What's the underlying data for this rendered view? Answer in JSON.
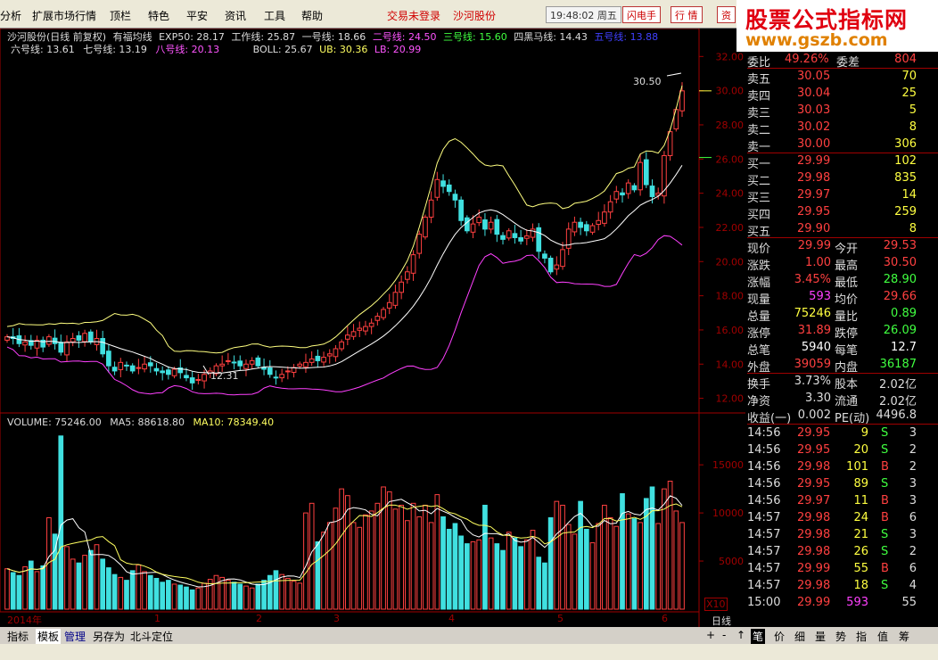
{
  "menu": {
    "items": [
      "分析",
      "扩展市场行情",
      "顶栏",
      "特色",
      "平安",
      "资讯",
      "工具",
      "帮助"
    ],
    "login_status": "交易未登录",
    "stock_link": "沙河股份",
    "clock": "19:48:02 周五",
    "flash_button": "闪电手",
    "quote_button": "行 情",
    "info_button": "资"
  },
  "banner": {
    "line1": "股票公式指标网",
    "line2": "www.gszb.com"
  },
  "header": {
    "title": "沙河股份(日线 前复权)",
    "indicator_name": "有福均线",
    "exp50": "EXP50: 28.17",
    "work": "工作线: 25.87",
    "l1": "一号线: 18.66",
    "l2": "二号线: 24.50",
    "l3": "三号线: 15.60",
    "l4": "四黑马线: 14.43",
    "l5": "五号线: 13.88",
    "l6": "六号线: 13.61",
    "l7": "七号线: 13.19",
    "l8": "八号线: 20.13",
    "boll": "BOLL: 25.67",
    "ub": "UB: 30.36",
    "lb": "LB: 20.99"
  },
  "volume_header": {
    "vol": "VOLUME: 75246.00",
    "ma5": "MA5: 88618.80",
    "ma10": "MA10: 78349.40"
  },
  "annotations": {
    "high": "30.50",
    "low": "12.31"
  },
  "x_labels": [
    "2014年",
    "1",
    "2",
    "3",
    "4",
    "5",
    "6"
  ],
  "x10_label": "X10",
  "period_label": "日线",
  "price_axis": [
    "32.00",
    "30.00",
    "28.00",
    "26.00",
    "24.00",
    "22.00",
    "20.00",
    "18.00",
    "16.00",
    "14.00",
    "12.00"
  ],
  "volume_axis": [
    "15000",
    "10000",
    "5000"
  ],
  "quote": {
    "weibi_label": "委比",
    "weibi_val": "49.26%",
    "weicha_label": "委差",
    "weicha_val": "804",
    "sells": [
      {
        "label": "卖五",
        "price": "30.05",
        "vol": "70"
      },
      {
        "label": "卖四",
        "price": "30.04",
        "vol": "25"
      },
      {
        "label": "卖三",
        "price": "30.03",
        "vol": "5"
      },
      {
        "label": "卖二",
        "price": "30.02",
        "vol": "8"
      },
      {
        "label": "卖一",
        "price": "30.00",
        "vol": "306"
      }
    ],
    "buys": [
      {
        "label": "买一",
        "price": "29.99",
        "vol": "102"
      },
      {
        "label": "买二",
        "price": "29.98",
        "vol": "835"
      },
      {
        "label": "买三",
        "price": "29.97",
        "vol": "14"
      },
      {
        "label": "买四",
        "price": "29.95",
        "vol": "259"
      },
      {
        "label": "买五",
        "price": "29.90",
        "vol": "8"
      }
    ],
    "stats": [
      {
        "l1": "现价",
        "v1": "29.99",
        "c1": "#ff4040",
        "l2": "今开",
        "v2": "29.53",
        "c2": "#ff4040"
      },
      {
        "l1": "涨跌",
        "v1": "1.00",
        "c1": "#ff4040",
        "l2": "最高",
        "v2": "30.50",
        "c2": "#ff4040"
      },
      {
        "l1": "涨幅",
        "v1": "3.45%",
        "c1": "#ff4040",
        "l2": "最低",
        "v2": "28.90",
        "c2": "#40ff40"
      },
      {
        "l1": "现量",
        "v1": "593",
        "c1": "#ff40ff",
        "l2": "均价",
        "v2": "29.66",
        "c2": "#ff4040"
      },
      {
        "l1": "总量",
        "v1": "75246",
        "c1": "#ffff40",
        "l2": "量比",
        "v2": "0.89",
        "c2": "#40ff40"
      },
      {
        "l1": "涨停",
        "v1": "31.89",
        "c1": "#ff4040",
        "l2": "跌停",
        "v2": "26.09",
        "c2": "#40ff40"
      },
      {
        "l1": "总笔",
        "v1": "5940",
        "c1": "#ffffff",
        "l2": "每笔",
        "v2": "12.7",
        "c2": "#ffffff"
      },
      {
        "l1": "外盘",
        "v1": "39059",
        "c1": "#ff4040",
        "l2": "内盘",
        "v2": "36187",
        "c2": "#40ff40"
      }
    ],
    "stats2": [
      {
        "l1": "换手",
        "v1": "3.73%",
        "l2": "股本",
        "v2": "2.02亿"
      },
      {
        "l1": "净资",
        "v1": "3.30",
        "l2": "流通",
        "v2": "2.02亿"
      },
      {
        "l1": "收益(一)",
        "v1": "0.002",
        "l2": "PE(动)",
        "v2": "4496.8"
      }
    ],
    "ticks": [
      {
        "t": "14:56",
        "p": "29.95",
        "v": "9",
        "d": "S",
        "n": "3"
      },
      {
        "t": "14:56",
        "p": "29.95",
        "v": "20",
        "d": "S",
        "n": "2"
      },
      {
        "t": "14:56",
        "p": "29.98",
        "v": "101",
        "d": "B",
        "n": "2"
      },
      {
        "t": "14:56",
        "p": "29.95",
        "v": "89",
        "d": "S",
        "n": "3"
      },
      {
        "t": "14:56",
        "p": "29.97",
        "v": "11",
        "d": "B",
        "n": "3"
      },
      {
        "t": "14:57",
        "p": "29.98",
        "v": "24",
        "d": "B",
        "n": "6"
      },
      {
        "t": "14:57",
        "p": "29.98",
        "v": "21",
        "d": "S",
        "n": "3"
      },
      {
        "t": "14:57",
        "p": "29.98",
        "v": "26",
        "d": "S",
        "n": "2"
      },
      {
        "t": "14:57",
        "p": "29.99",
        "v": "55",
        "d": "B",
        "n": "6"
      },
      {
        "t": "14:57",
        "p": "29.98",
        "v": "18",
        "d": "S",
        "n": "4"
      },
      {
        "t": "15:00",
        "p": "29.99",
        "v": "593",
        "d": "",
        "n": "55"
      }
    ]
  },
  "bottom_tabs": [
    "指标",
    "模板",
    "管理",
    "另存为",
    "北斗定位"
  ],
  "right_tabs": [
    "+",
    "-",
    "↑",
    "笔",
    "价",
    "细",
    "量",
    "势",
    "指",
    "值",
    "筹"
  ],
  "chart_data": {
    "type": "candlestick",
    "price_range": [
      11.3,
      32.8
    ],
    "volume_range": [
      0,
      19000
    ],
    "x_labels": [
      "2014年",
      "1",
      "2",
      "3",
      "4",
      "5",
      "6"
    ],
    "series": [
      {
        "name": "有福均线",
        "notable_values": {
          "EXP50": 28.17,
          "工作线": 25.87,
          "一号线": 18.66,
          "二号线": 24.5,
          "三号线": 15.6,
          "四黑马线": 14.43,
          "五号线": 13.88,
          "六号线": 13.61,
          "七号线": 13.19,
          "八号线": 20.13
        }
      },
      {
        "name": "BOLL",
        "values": {
          "BOLL": 25.67,
          "UB": 30.36,
          "LB": 20.99
        }
      },
      {
        "name": "VOLUME",
        "last": 75246.0,
        "MA5": 88618.8,
        "MA10": 78349.4
      }
    ],
    "high_mark": 30.5,
    "low_mark": 12.31,
    "close_path": [
      15.6,
      15.5,
      15.2,
      15.3,
      15.1,
      15.4,
      15.0,
      15.6,
      15.2,
      14.7,
      15.3,
      15.5,
      15.4,
      15.8,
      15.3,
      15.5,
      14.6,
      13.9,
      13.6,
      14.1,
      13.9,
      13.6,
      13.8,
      14.0,
      13.9,
      13.6,
      13.5,
      13.4,
      13.7,
      13.5,
      13.2,
      12.9,
      13.1,
      13.4,
      13.6,
      13.9,
      14.0,
      14.2,
      14.1,
      13.9,
      14.0,
      14.2,
      13.9,
      13.7,
      13.4,
      13.2,
      13.4,
      13.6,
      13.8,
      14.0,
      14.1,
      14.3,
      14.2,
      14.4,
      14.6,
      14.9,
      15.3,
      15.7,
      15.9,
      16.1,
      16.2,
      16.4,
      16.8,
      17.2,
      17.6,
      18.2,
      18.8,
      19.4,
      20.4,
      21.6,
      22.6,
      23.6,
      24.8,
      24.4,
      24.1,
      23.6,
      22.4,
      21.8,
      22.2,
      22.6,
      21.9,
      22.3,
      21.6,
      21.3,
      21.8,
      21.4,
      21.2,
      21.5,
      21.9,
      20.6,
      20.2,
      19.4,
      19.8,
      20.7,
      21.9,
      22.3,
      22.0,
      21.8,
      22.1,
      22.4,
      22.9,
      23.5,
      24.1,
      23.9,
      24.6,
      24.2,
      25.8,
      24.5,
      23.8,
      24.0,
      26.2,
      27.6,
      28.9,
      29.99
    ],
    "volume_path": [
      4200,
      3800,
      3500,
      4400,
      5000,
      3900,
      4500,
      9500,
      7800,
      18000,
      6500,
      5200,
      4800,
      5600,
      6100,
      6700,
      5200,
      4300,
      3600,
      3300,
      3000,
      4000,
      4600,
      3900,
      3500,
      3200,
      2800,
      3000,
      2600,
      2500,
      2300,
      2000,
      2200,
      2700,
      3100,
      3500,
      3300,
      3000,
      2800,
      2600,
      2400,
      2200,
      2600,
      3000,
      3500,
      4000,
      3600,
      3200,
      2900,
      2700,
      10000,
      11000,
      7000,
      8000,
      9000,
      10500,
      12500,
      11800,
      9000,
      8500,
      9800,
      10200,
      11000,
      12700,
      12200,
      10400,
      10800,
      9200,
      11000,
      9600,
      10800,
      9000,
      11900,
      9600,
      8300,
      8900,
      7600,
      6800,
      7000,
      7200,
      10800,
      7400,
      6800,
      6100,
      8000,
      7400,
      6500,
      7200,
      8200,
      5400,
      4800,
      9500,
      11200,
      10800,
      8800,
      7800,
      11200,
      8300,
      6900,
      8900,
      10800,
      9500,
      8600,
      12000,
      9900,
      9400,
      9000,
      11500,
      12700,
      8900,
      12500,
      13300,
      10200,
      9000
    ]
  }
}
